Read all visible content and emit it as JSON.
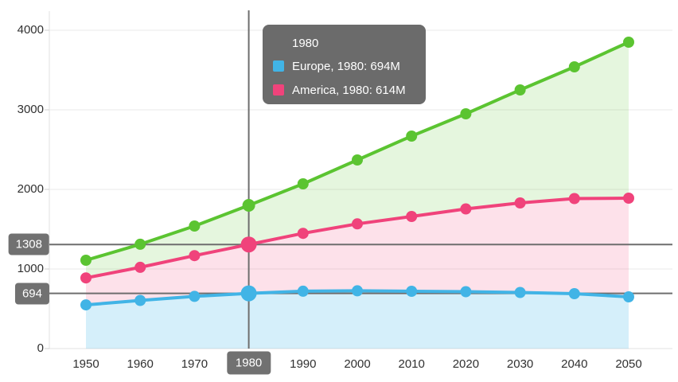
{
  "chart": {
    "x_labels": [
      "1950",
      "1960",
      "1970",
      "1980",
      "1990",
      "2000",
      "2010",
      "2020",
      "2030",
      "2040",
      "2050"
    ],
    "y_labels": [
      "0",
      "1000",
      "2000",
      "3000",
      "4000"
    ]
  },
  "chart_data": {
    "type": "area",
    "stacked": true,
    "title": "",
    "xlabel": "",
    "ylabel": "",
    "x": [
      1950,
      1960,
      1970,
      1980,
      1990,
      2000,
      2010,
      2020,
      2030,
      2040,
      2050
    ],
    "yticks": [
      0,
      1000,
      2000,
      3000,
      4000
    ],
    "ylim": [
      0,
      4200
    ],
    "grid": true,
    "legend_position": "none",
    "unit": "M (millions)",
    "series": [
      {
        "name": "Europe",
        "color": "#41B4E6",
        "values": [
          549,
          605,
          656,
          694,
          721,
          726,
          720,
          715,
          705,
          690,
          650
        ]
      },
      {
        "name": "America",
        "color": "#F0437B",
        "values": [
          339,
          416,
          512,
          614,
          727,
          841,
          940,
          1040,
          1125,
          1195,
          1240
        ]
      },
      {
        "name": "",
        "color": "#5BC431",
        "values": [
          222,
          290,
          372,
          492,
          622,
          803,
          1010,
          1195,
          1420,
          1655,
          1960
        ]
      }
    ],
    "highlight_index": 3,
    "highlight_x": 1980
  },
  "tooltip": {
    "title": "1980",
    "rows": [
      {
        "series": "Europe",
        "swatch_color": "#41B4E6",
        "label": "Europe, 1980: 694M"
      },
      {
        "series": "America",
        "swatch_color": "#F0437B",
        "label": "America, 1980: 614M"
      }
    ]
  },
  "crosshair": {
    "x_badge": "1980",
    "y_badges": [
      "1308",
      "694"
    ],
    "y_values": [
      1308,
      694
    ]
  },
  "colors": {
    "europe_line": "#41B4E6",
    "europe_fill": "rgba(65,180,230,0.22)",
    "america_line": "#F0437B",
    "america_fill": "rgba(240,67,123,0.16)",
    "green_line": "#5BC431",
    "green_fill": "rgba(91,196,49,0.16)",
    "tooltip_bg": "#6B6B6B",
    "badge_bg": "#717171",
    "crosshair": "#6E6E6E",
    "gridline": "#E9E9E9",
    "axis_line": "#E0E0E0",
    "axis_text": "#303030"
  }
}
